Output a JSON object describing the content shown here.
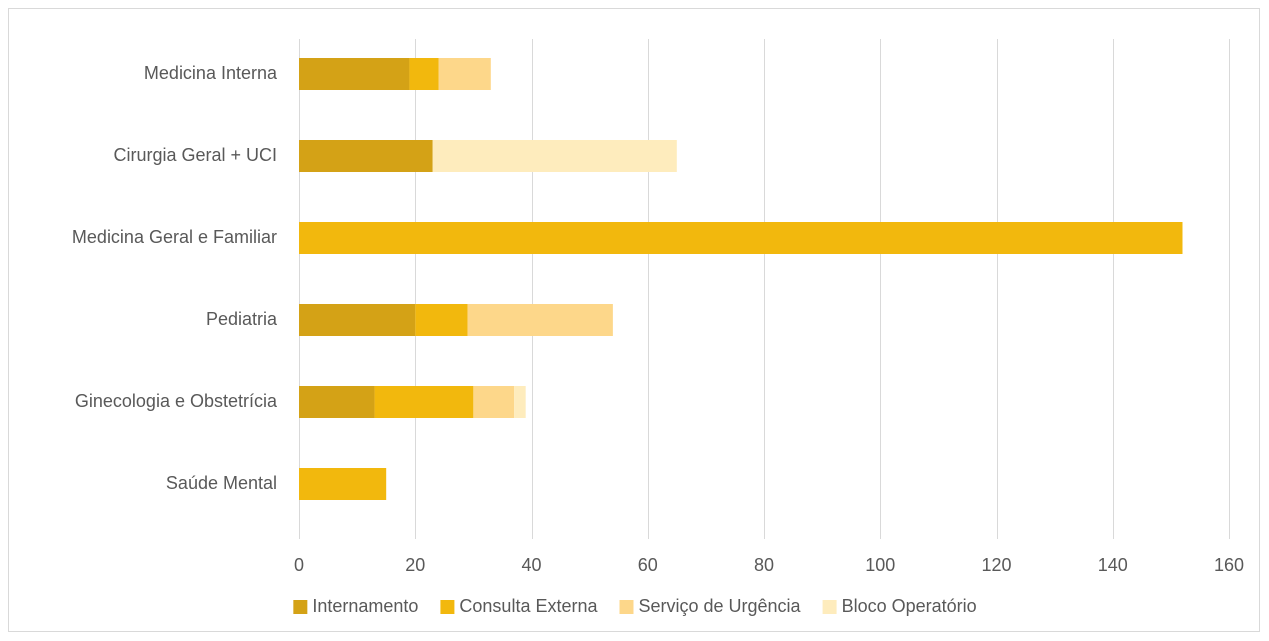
{
  "chart_data": {
    "type": "bar",
    "orientation": "horizontal",
    "stacked": true,
    "categories": [
      "Medicina Interna",
      "Cirurgia Geral + UCI",
      "Medicina Geral e Familiar",
      "Pediatria",
      "Ginecologia e Obstetrícia",
      "Saúde Mental"
    ],
    "series": [
      {
        "name": "Internamento",
        "color": "#D4A216",
        "values": [
          19,
          23,
          0,
          20,
          13,
          0
        ]
      },
      {
        "name": "Consulta Externa",
        "color": "#F2B80D",
        "values": [
          5,
          0,
          152,
          9,
          17,
          15
        ]
      },
      {
        "name": "Serviço de Urgência",
        "color": "#FDD78A",
        "values": [
          9,
          0,
          0,
          25,
          7,
          0
        ]
      },
      {
        "name": "Bloco Operatório",
        "color": "#FEECBD",
        "values": [
          0,
          42,
          0,
          0,
          2,
          0
        ]
      }
    ],
    "xlim": [
      0,
      160
    ],
    "xticks": [
      0,
      20,
      40,
      60,
      80,
      100,
      120,
      140,
      160
    ],
    "grid": true,
    "legend_position": "bottom",
    "title": "",
    "xlabel": "",
    "ylabel": ""
  }
}
